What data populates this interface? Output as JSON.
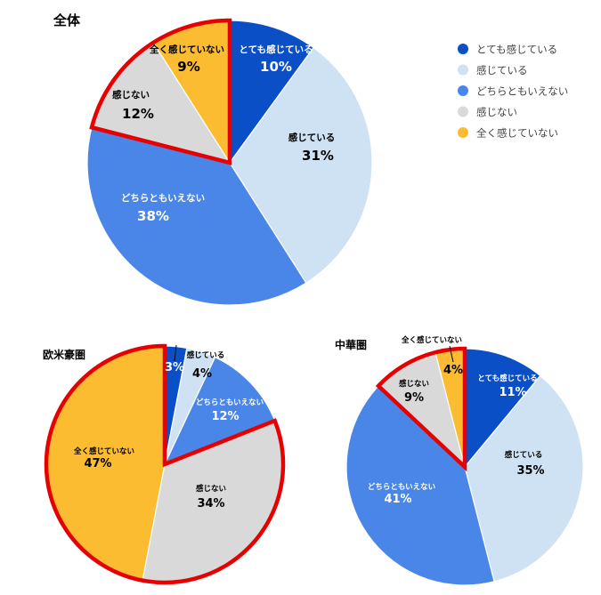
{
  "legend": [
    {
      "label": "とても感じている",
      "color": "#0b4fc6"
    },
    {
      "label": "感じている",
      "color": "#cfe2f3"
    },
    {
      "label": "どちらともいえない",
      "color": "#4a86e8"
    },
    {
      "label": "感じない",
      "color": "#d9d9d9"
    },
    {
      "label": "全く感じていない",
      "color": "#fbbc32"
    }
  ],
  "highlight_color": "#e60000",
  "chart_data": [
    {
      "type": "pie",
      "title": "全体",
      "categories": [
        "とても感じている",
        "感じている",
        "どちらともいえない",
        "感じない",
        "全く感じていない"
      ],
      "values": [
        10,
        31,
        38,
        12,
        9
      ],
      "value_labels": [
        "10%",
        "31%",
        "38%",
        "12%",
        "9%"
      ],
      "colors": [
        "#0b4fc6",
        "#cfe2f3",
        "#4a86e8",
        "#d9d9d9",
        "#fbbc32"
      ],
      "highlighted": [
        "感じない",
        "全く感じていない"
      ]
    },
    {
      "type": "pie",
      "title": "欧米豪圏",
      "categories": [
        "とても感じている",
        "感じている",
        "どちらともいえない",
        "感じない",
        "全く感じていない"
      ],
      "values": [
        3,
        4,
        12,
        34,
        47
      ],
      "value_labels": [
        "3%",
        "4%",
        "12%",
        "34%",
        "47%"
      ],
      "colors": [
        "#0b4fc6",
        "#cfe2f3",
        "#4a86e8",
        "#d9d9d9",
        "#fbbc32"
      ],
      "highlighted": [
        "感じない",
        "全く感じていない"
      ]
    },
    {
      "type": "pie",
      "title": "中華圏",
      "categories": [
        "とても感じている",
        "感じている",
        "どちらともいえない",
        "感じない",
        "全く感じていない"
      ],
      "values": [
        11,
        35,
        41,
        9,
        4
      ],
      "value_labels": [
        "11%",
        "35%",
        "41%",
        "9%",
        "4%"
      ],
      "colors": [
        "#0b4fc6",
        "#cfe2f3",
        "#4a86e8",
        "#d9d9d9",
        "#fbbc32"
      ],
      "highlighted": [
        "感じない",
        "全く感じていない"
      ]
    }
  ]
}
